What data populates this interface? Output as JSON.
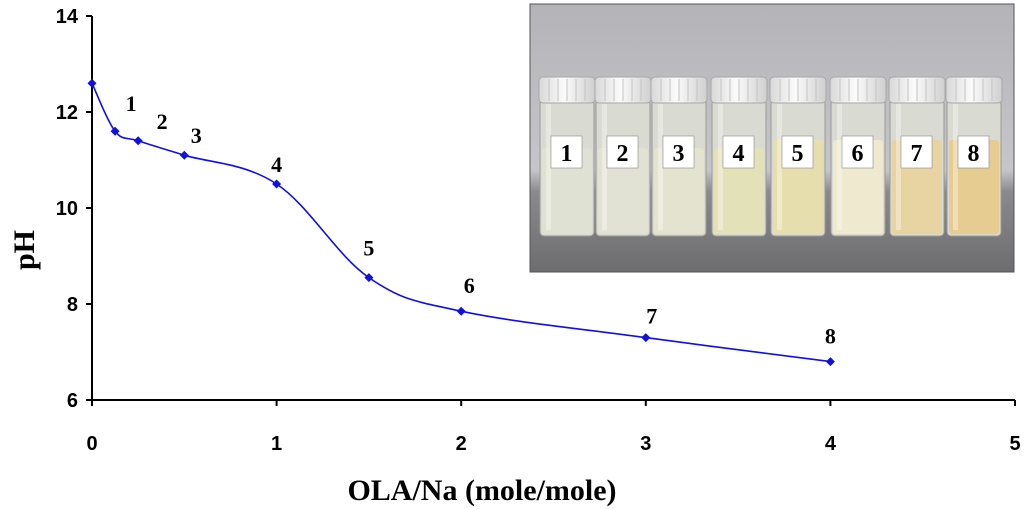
{
  "chart_data": {
    "type": "line",
    "xlabel": "OLA/Na (mole/mole)",
    "ylabel": "pH",
    "xlim": [
      0,
      5
    ],
    "ylim": [
      6,
      14
    ],
    "xticks": [
      "0",
      "1",
      "2",
      "3",
      "4",
      "5"
    ],
    "yticks": [
      "6",
      "8",
      "10",
      "12",
      "14"
    ],
    "grid": false,
    "series": [
      {
        "color": "#1010e0",
        "marker": "diamond",
        "points": [
          {
            "x": 0,
            "y": 12.6,
            "label": ""
          },
          {
            "x": 0.125,
            "y": 11.6,
            "label": "1"
          },
          {
            "x": 0.25,
            "y": 11.4,
            "label": "2"
          },
          {
            "x": 0.5,
            "y": 11.1,
            "label": "3"
          },
          {
            "x": 1,
            "y": 10.5,
            "label": "4"
          },
          {
            "x": 1.5,
            "y": 8.55,
            "label": "5"
          },
          {
            "x": 2,
            "y": 7.85,
            "label": "6"
          },
          {
            "x": 3,
            "y": 7.3,
            "label": "7"
          },
          {
            "x": 4,
            "y": 6.8,
            "label": "8"
          }
        ]
      }
    ]
  },
  "inset_photo": {
    "description_icon": "vials-photo-icon",
    "vial_labels": [
      "1",
      "2",
      "3",
      "4",
      "5",
      "6",
      "7",
      "8"
    ],
    "vial_colors": [
      "#dfe2d2",
      "#e2e2d4",
      "#e4e3cf",
      "#e3e1b8",
      "#e6dfad",
      "#efe9cf",
      "#e8d3a2",
      "#e6cc90"
    ]
  }
}
